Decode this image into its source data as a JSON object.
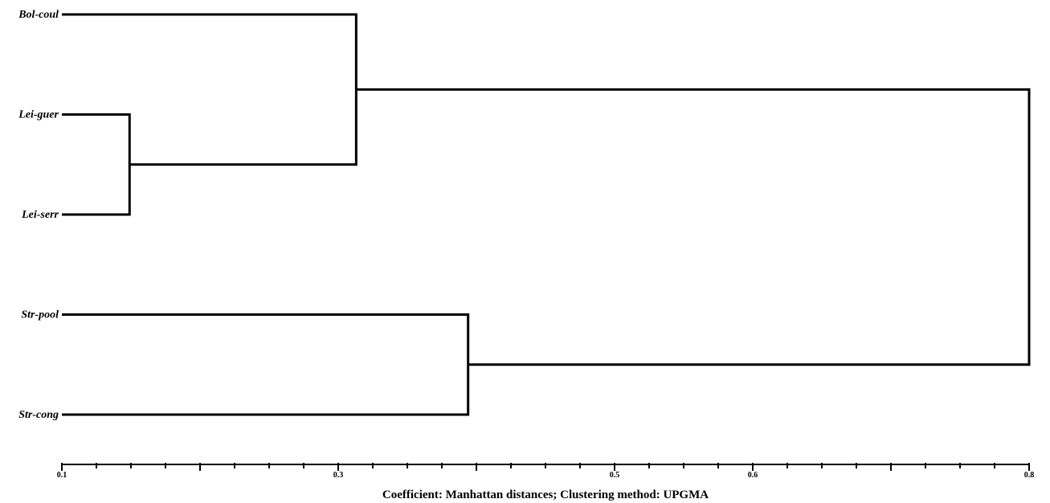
{
  "chart_data": {
    "type": "dendrogram",
    "leaves": [
      "Bol-coul",
      "Lei-guer",
      "Lei-serr",
      "Str-pool",
      "Str-cong"
    ],
    "merges": [
      {
        "children": [
          "Lei-guer",
          "Lei-serr"
        ],
        "height": 0.149
      },
      {
        "children": [
          "Bol-coul",
          "Lei-guer+Lei-serr"
        ],
        "height": 0.313
      },
      {
        "children": [
          "Str-pool",
          "Str-cong"
        ],
        "height": 0.394
      },
      {
        "children": [
          "Bol-coul+Lei-guer+Lei-serr",
          "Str-pool+Str-cong"
        ],
        "height": 0.8
      }
    ],
    "xlim": [
      0.1,
      0.8
    ],
    "tick_labels": [
      {
        "value": 0.1,
        "label": "0.1"
      },
      {
        "value": 0.3,
        "label": "0.3"
      },
      {
        "value": 0.5,
        "label": "0.5"
      },
      {
        "value": 0.6,
        "label": "0.6"
      },
      {
        "value": 0.8,
        "label": "0.8"
      }
    ],
    "xlabel": "Coefficient: Manhattan  distances; Clustering method: UPGMA"
  }
}
